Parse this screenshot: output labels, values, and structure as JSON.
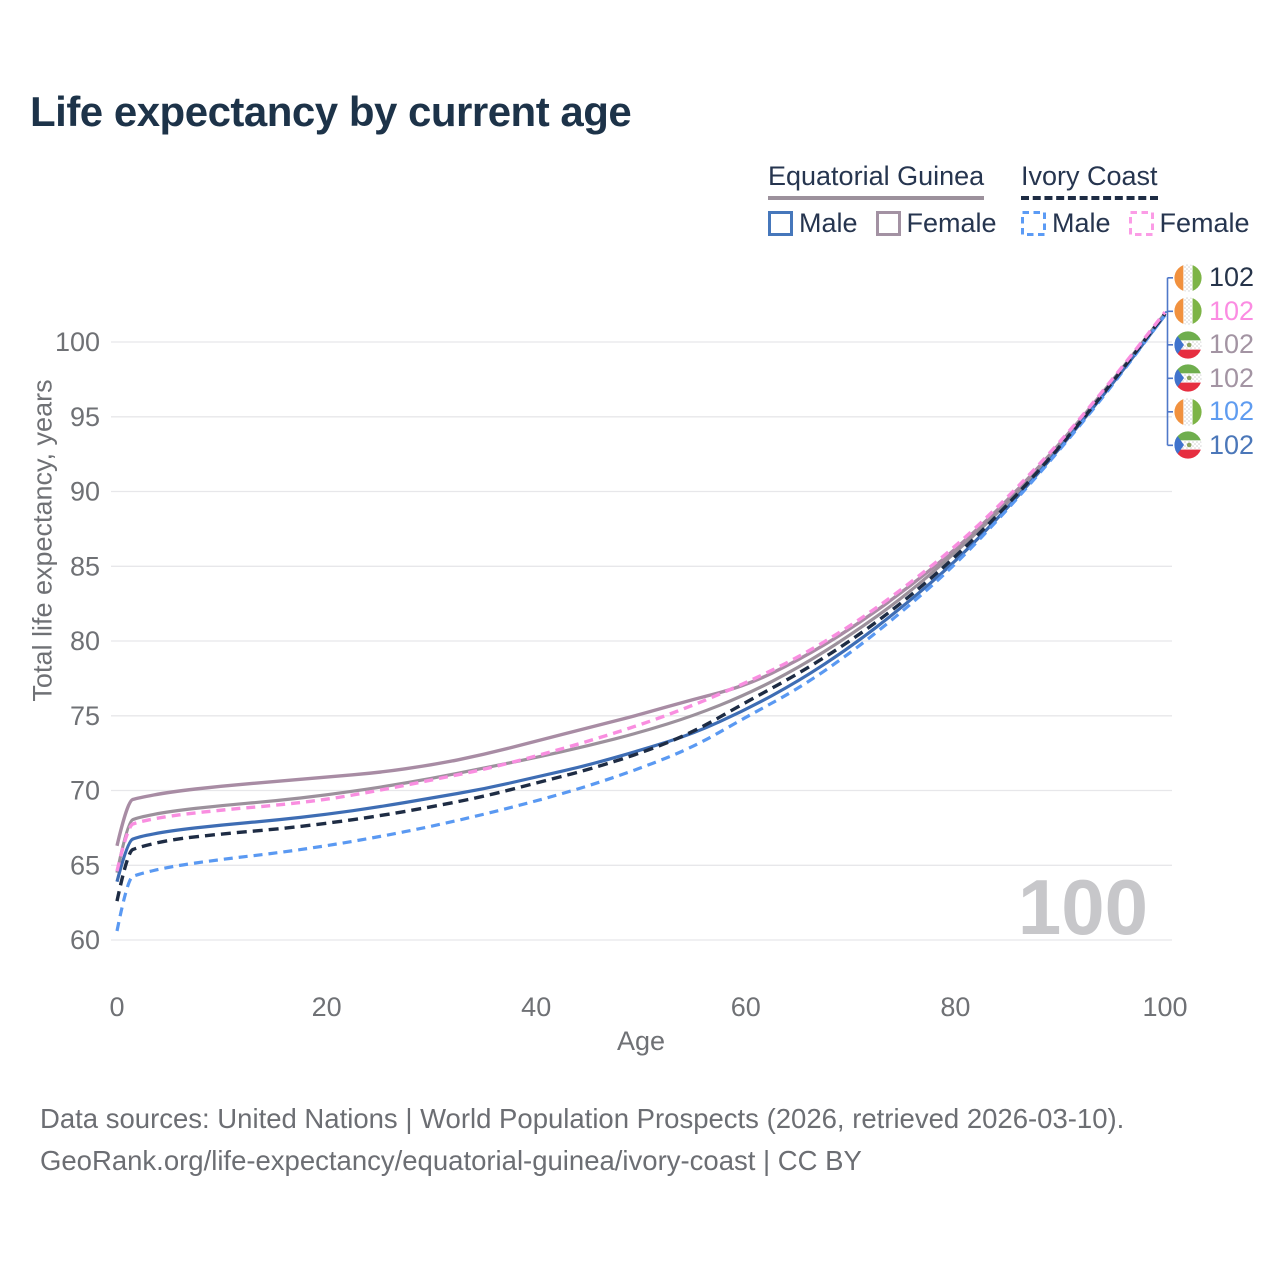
{
  "title": "Life expectancy by current age",
  "colors": {
    "title": "#1d3349",
    "axis_text": "#6f7175",
    "grid": "#e7e7ea",
    "footer_text": "#6c6e73",
    "watermark": "#c7c7ca",
    "connector": "#4f78c9"
  },
  "legend": {
    "groups": [
      {
        "label": "Equatorial Guinea",
        "underline_style": "solid",
        "underline_color": "#9c919c",
        "items": [
          {
            "label": "Male",
            "swatch_color": "#4677bb",
            "swatch_style": "solid"
          },
          {
            "label": "Female",
            "swatch_color": "#a392a3",
            "swatch_style": "solid"
          }
        ]
      },
      {
        "label": "Ivory Coast",
        "underline_style": "dashed",
        "underline_color": "#1e2c44",
        "items": [
          {
            "label": "Male",
            "swatch_color": "#5b9bf5",
            "swatch_style": "dashed"
          },
          {
            "label": "Female",
            "swatch_color": "#fb9ce6",
            "swatch_style": "dashed"
          }
        ]
      }
    ]
  },
  "chart_data": {
    "type": "line",
    "title": "Life expectancy by current age",
    "xlabel": "Age",
    "ylabel": "Total life expectancy, years",
    "x_ticks": [
      0,
      20,
      40,
      60,
      80,
      100
    ],
    "y_ticks": [
      60,
      65,
      70,
      75,
      80,
      85,
      90,
      95,
      100
    ],
    "xlim": [
      0,
      100
    ],
    "ylim": [
      58.5,
      103
    ],
    "grid": "horizontal",
    "legend_position": "top-right",
    "watermark": "100",
    "x": [
      0,
      1,
      2,
      5,
      10,
      15,
      20,
      25,
      30,
      35,
      40,
      45,
      50,
      55,
      60,
      65,
      70,
      75,
      80,
      85,
      90,
      95,
      100
    ],
    "series": [
      {
        "name": "Equatorial Guinea Female",
        "country": "equatorial-guinea",
        "sex": "female",
        "style": "solid",
        "color": "#a88ca4",
        "width": 3.4,
        "values": [
          66.3,
          69.3,
          69.5,
          69.9,
          70.3,
          70.6,
          70.9,
          71.2,
          71.7,
          72.4,
          73.3,
          74.2,
          75.1,
          76.1,
          77.0,
          78.7,
          80.8,
          83.3,
          86.1,
          89.4,
          93.2,
          97.4,
          101.9
        ]
      },
      {
        "name": "Equatorial Guinea All",
        "country": "equatorial-guinea",
        "sex": "all",
        "style": "solid",
        "color": "#9c919c",
        "width": 3.2,
        "values": [
          64.5,
          67.9,
          68.2,
          68.6,
          69.0,
          69.3,
          69.7,
          70.2,
          70.8,
          71.5,
          72.2,
          73.0,
          73.9,
          75.0,
          76.4,
          78.2,
          80.4,
          82.9,
          85.9,
          89.2,
          93.1,
          97.3,
          101.9
        ]
      },
      {
        "name": "Equatorial Guinea Male",
        "country": "equatorial-guinea",
        "sex": "male",
        "style": "solid",
        "color": "#3e6db4",
        "width": 3.2,
        "values": [
          63.9,
          66.6,
          66.9,
          67.3,
          67.7,
          68.0,
          68.4,
          68.9,
          69.5,
          70.1,
          70.9,
          71.7,
          72.7,
          73.8,
          75.4,
          77.3,
          79.6,
          82.3,
          85.3,
          88.9,
          92.9,
          97.2,
          101.8
        ]
      },
      {
        "name": "Ivory Coast Male",
        "country": "ivory-coast",
        "sex": "male",
        "style": "dashed",
        "dash": "9 6",
        "color": "#5a99f2",
        "width": 3.2,
        "values": [
          60.6,
          64.1,
          64.4,
          64.9,
          65.4,
          65.8,
          66.3,
          66.9,
          67.6,
          68.4,
          69.3,
          70.3,
          71.5,
          72.9,
          74.9,
          76.8,
          79.2,
          82.0,
          85.1,
          88.8,
          92.8,
          97.1,
          101.8
        ]
      },
      {
        "name": "Ivory Coast All",
        "country": "ivory-coast",
        "sex": "all",
        "style": "dashed",
        "dash": "10 6",
        "color": "#1e2c44",
        "width": 3.4,
        "values": [
          62.6,
          65.9,
          66.2,
          66.7,
          67.1,
          67.4,
          67.8,
          68.3,
          68.9,
          69.6,
          70.5,
          71.4,
          72.5,
          73.9,
          75.9,
          77.8,
          80.0,
          82.6,
          85.6,
          89.1,
          93.0,
          97.3,
          101.9
        ]
      },
      {
        "name": "Ivory Coast Female",
        "country": "ivory-coast",
        "sex": "female",
        "style": "dashed",
        "dash": "9 6",
        "color": "#f98ee0",
        "width": 3.4,
        "values": [
          64.6,
          67.6,
          67.9,
          68.3,
          68.7,
          69.0,
          69.4,
          70.0,
          70.7,
          71.4,
          72.3,
          73.3,
          74.4,
          75.7,
          77.2,
          78.9,
          81.0,
          83.5,
          86.3,
          89.6,
          93.3,
          97.5,
          102.0
        ]
      }
    ],
    "end_labels": [
      {
        "flag": "ivory-coast",
        "value": "102",
        "color": "#26344a"
      },
      {
        "flag": "ivory-coast",
        "value": "102",
        "color": "#fb8ce2"
      },
      {
        "flag": "equatorial-guinea",
        "value": "102",
        "color": "#a394a3"
      },
      {
        "flag": "equatorial-guinea",
        "value": "102",
        "color": "#a394a3"
      },
      {
        "flag": "ivory-coast",
        "value": "102",
        "color": "#5f9cf0"
      },
      {
        "flag": "equatorial-guinea",
        "value": "102",
        "color": "#4b77b9"
      }
    ]
  },
  "footer": {
    "line1": "Data sources: United Nations | World Population Prospects (2026, retrieved 2026-03-10).",
    "line2": "GeoRank.org/life-expectancy/equatorial-guinea/ivory-coast | CC BY"
  }
}
